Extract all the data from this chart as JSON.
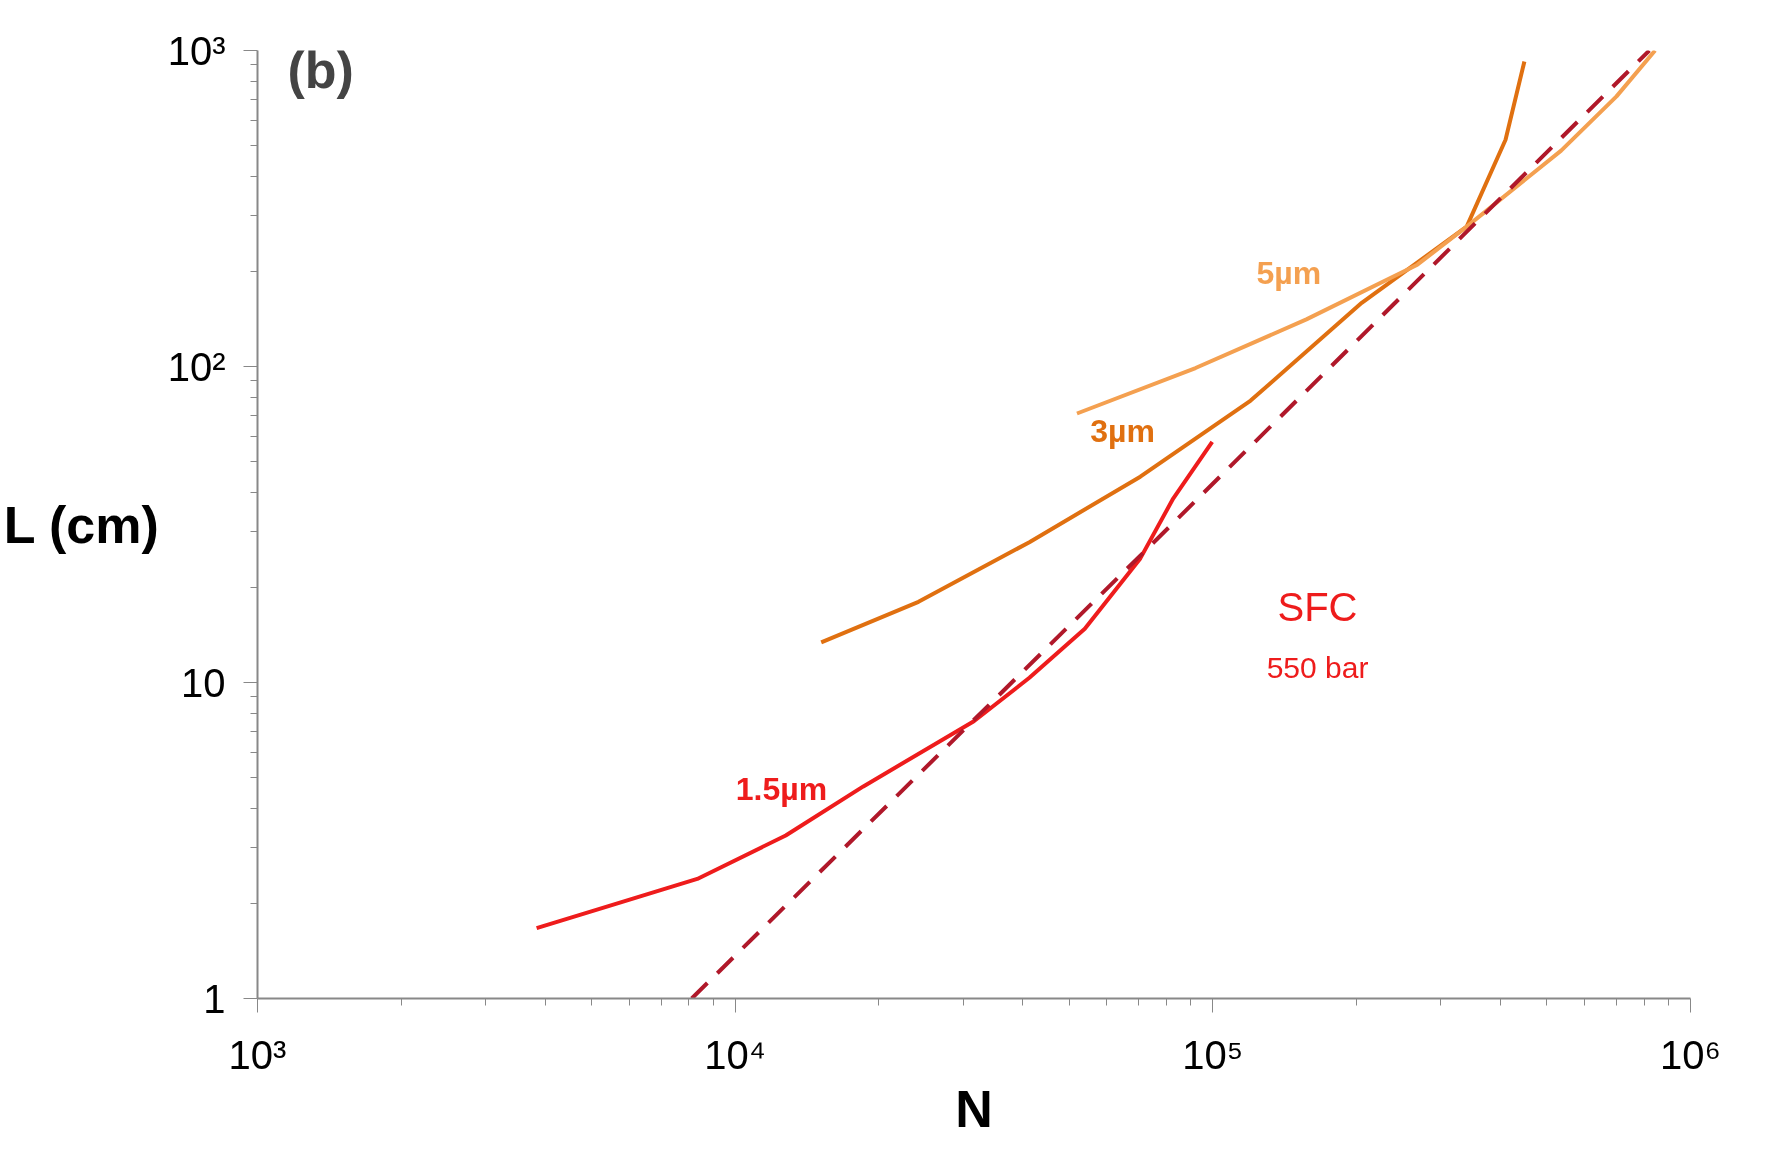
{
  "chart_data": {
    "type": "line",
    "title": "(b)",
    "xlabel": "N",
    "ylabel": "L (cm)",
    "log": "xy",
    "grid": false,
    "marker": "none",
    "xlim": [
      1000,
      1000000
    ],
    "ylim": [
      1,
      1000
    ],
    "xticks": [
      {
        "value": 1000,
        "label": "10³"
      },
      {
        "value": 10000,
        "label": "10⁴"
      },
      {
        "value": 100000,
        "label": "10⁵"
      },
      {
        "value": 1000000,
        "label": "10⁶"
      }
    ],
    "yticks": [
      1,
      10,
      {
        "value": 100,
        "label": "10²"
      },
      {
        "value": 1000,
        "label": "10³"
      }
    ],
    "series": [
      {
        "name": "1.5µm",
        "color": "#ee1c1c",
        "line_style": "solid",
        "x": [
          3840,
          5430,
          8330,
          12760,
          18550,
          31600,
          41300,
          53950,
          70500,
          82600,
          99700
        ],
        "values": [
          1.67,
          1.96,
          2.39,
          3.28,
          4.69,
          7.54,
          10.35,
          14.8,
          24.7,
          38.2,
          57.7
        ]
      },
      {
        "name": "3µm",
        "color": "#e07010",
        "line_style": "solid",
        "x": [
          15140,
          24200,
          41300,
          70500,
          120000,
          205000,
          340000,
          410000,
          449000
        ],
        "values": [
          13.4,
          18.0,
          27.8,
          44.8,
          78,
          159,
          277,
          522,
          923
        ]
      },
      {
        "name": "5µm",
        "color": "#f4a050",
        "line_style": "solid",
        "x": [
          51950,
          92000,
          157000,
          268000,
          340000,
          536000,
          700000,
          843000
        ],
        "values": [
          71,
          98.9,
          141,
          210,
          277,
          482,
          716,
          1000
        ]
      },
      {
        "color": "#b0182a",
        "line_style": "dashed",
        "x": [
          8110,
          82000,
          820000
        ],
        "values": [
          1,
          31.6,
          1000
        ]
      }
    ],
    "annotations": [
      "SFC",
      "550 bar"
    ]
  }
}
